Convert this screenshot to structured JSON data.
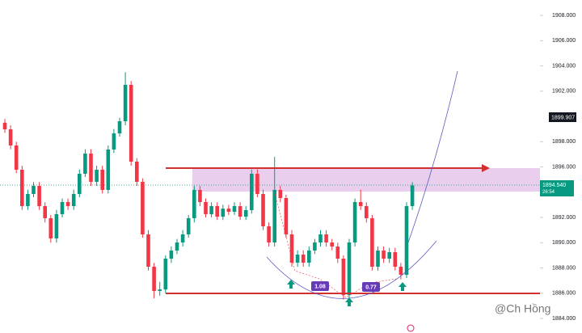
{
  "chart_data": {
    "type": "candlestick",
    "open": [
      1899.5,
      1898.98,
      1897.7,
      1895.78,
      1892.9,
      1893.86,
      1894.5,
      1892.9,
      1891.94,
      1890.34,
      1892.26,
      1893.22,
      1892.9,
      1893.86,
      1895.46,
      1897.06,
      1894.82,
      1895.78,
      1894.18,
      1897.38,
      1898.66,
      1899.62,
      1902.5,
      1896.42,
      1894.82,
      1890.66,
      1888.1,
      1886.18,
      1886.3,
      1888.74,
      1889.38,
      1890.02,
      1890.66,
      1891.94,
      1894.18,
      1893.22,
      1892.26,
      1892.9,
      1892.06,
      1892.7,
      1892.45,
      1892.9,
      1892.06,
      1892.58,
      1895.46,
      1893.86,
      1891.3,
      1890.02,
      1894.18,
      1893.54,
      1890.66,
      1888.42,
      1889.06,
      1888.42,
      1889.38,
      1890.02,
      1890.66,
      1890.02,
      1889.7,
      1888.74,
      1885.86,
      1890.02,
      1893.22,
      1892.9,
      1891.94,
      1888.1,
      1889.38,
      1888.74,
      1889.25,
      1888.1,
      1887.46,
      1892.9
    ],
    "high": [
      1899.8,
      1899.3,
      1898.0,
      1896.1,
      1894.2,
      1894.8,
      1894.8,
      1893.2,
      1892.2,
      1892.6,
      1893.5,
      1893.5,
      1894.2,
      1895.8,
      1897.4,
      1897.4,
      1896.1,
      1896.1,
      1897.7,
      1899.0,
      1899.9,
      1903.5,
      1902.8,
      1896.7,
      1895.1,
      1891.0,
      1888.4,
      1886.9,
      1889.0,
      1889.7,
      1890.3,
      1891.0,
      1892.2,
      1894.5,
      1894.5,
      1893.5,
      1893.2,
      1893.2,
      1893.0,
      1893.0,
      1893.2,
      1893.2,
      1892.9,
      1895.8,
      1895.8,
      1894.2,
      1891.6,
      1896.8,
      1894.5,
      1893.8,
      1891.0,
      1889.4,
      1889.4,
      1889.7,
      1890.3,
      1891.0,
      1891.0,
      1890.3,
      1890.0,
      1889.0,
      1890.3,
      1893.5,
      1894.2,
      1893.2,
      1892.2,
      1889.7,
      1889.7,
      1889.6,
      1889.6,
      1888.4,
      1893.2,
      1894.8
    ],
    "low": [
      1898.7,
      1897.4,
      1895.5,
      1892.6,
      1892.6,
      1893.6,
      1892.6,
      1891.6,
      1890.0,
      1890.0,
      1892.0,
      1892.6,
      1892.6,
      1893.6,
      1895.2,
      1894.5,
      1894.5,
      1893.9,
      1893.9,
      1897.1,
      1898.4,
      1899.3,
      1896.1,
      1894.5,
      1890.4,
      1887.8,
      1885.6,
      1885.8,
      1886.0,
      1888.4,
      1889.1,
      1889.7,
      1890.4,
      1891.6,
      1892.9,
      1892.0,
      1892.0,
      1891.8,
      1891.8,
      1892.2,
      1892.2,
      1891.8,
      1891.8,
      1892.3,
      1893.6,
      1891.0,
      1889.7,
      1889.7,
      1893.2,
      1890.4,
      1888.1,
      1888.1,
      1888.1,
      1888.1,
      1889.1,
      1889.7,
      1889.7,
      1889.4,
      1888.4,
      1885.5,
      1885.6,
      1889.7,
      1892.6,
      1891.6,
      1887.8,
      1887.8,
      1888.4,
      1888.4,
      1887.8,
      1887.1,
      1887.2,
      1892.6
    ],
    "close": [
      1898.98,
      1897.7,
      1895.78,
      1892.9,
      1893.86,
      1894.5,
      1892.9,
      1891.94,
      1890.34,
      1892.26,
      1893.22,
      1892.9,
      1893.86,
      1895.46,
      1897.06,
      1894.82,
      1895.78,
      1894.18,
      1897.38,
      1898.66,
      1899.62,
      1902.5,
      1896.42,
      1894.82,
      1890.66,
      1888.1,
      1886.18,
      1886.3,
      1888.74,
      1889.38,
      1890.02,
      1890.66,
      1891.94,
      1894.18,
      1893.22,
      1892.26,
      1892.9,
      1892.06,
      1892.7,
      1892.45,
      1892.9,
      1892.06,
      1892.58,
      1895.46,
      1893.86,
      1891.3,
      1890.02,
      1894.18,
      1893.54,
      1890.66,
      1888.42,
      1889.06,
      1888.42,
      1889.38,
      1890.02,
      1890.66,
      1890.02,
      1889.7,
      1888.74,
      1885.86,
      1890.02,
      1893.22,
      1892.9,
      1891.94,
      1888.1,
      1889.38,
      1888.74,
      1889.25,
      1888.1,
      1887.46,
      1892.9,
      1894.54
    ],
    "up_color": "#089981",
    "down_color": "#f23645",
    "ylim": [
      1882.85,
      1909.22
    ],
    "yticks": [
      {
        "value": 1908,
        "label": "1908.000"
      },
      {
        "value": 1906,
        "label": "1906.000"
      },
      {
        "value": 1904,
        "label": "1904.000"
      },
      {
        "value": 1902,
        "label": "1902.000"
      },
      {
        "value": 1898,
        "label": "1898.000"
      },
      {
        "value": 1896,
        "label": "1896.000"
      },
      {
        "value": 1892,
        "label": "1892.000"
      },
      {
        "value": 1890,
        "label": "1890.000"
      },
      {
        "value": 1888,
        "label": "1888.000"
      },
      {
        "value": 1886,
        "label": "1886.000"
      },
      {
        "value": 1884,
        "label": "1884.000"
      }
    ],
    "price_label": "1899.907",
    "last_price_label": "1894.540",
    "countdown": "26:54",
    "annotations": [
      "1.08",
      "0.77"
    ],
    "watermark": "@Ch Hồng"
  }
}
